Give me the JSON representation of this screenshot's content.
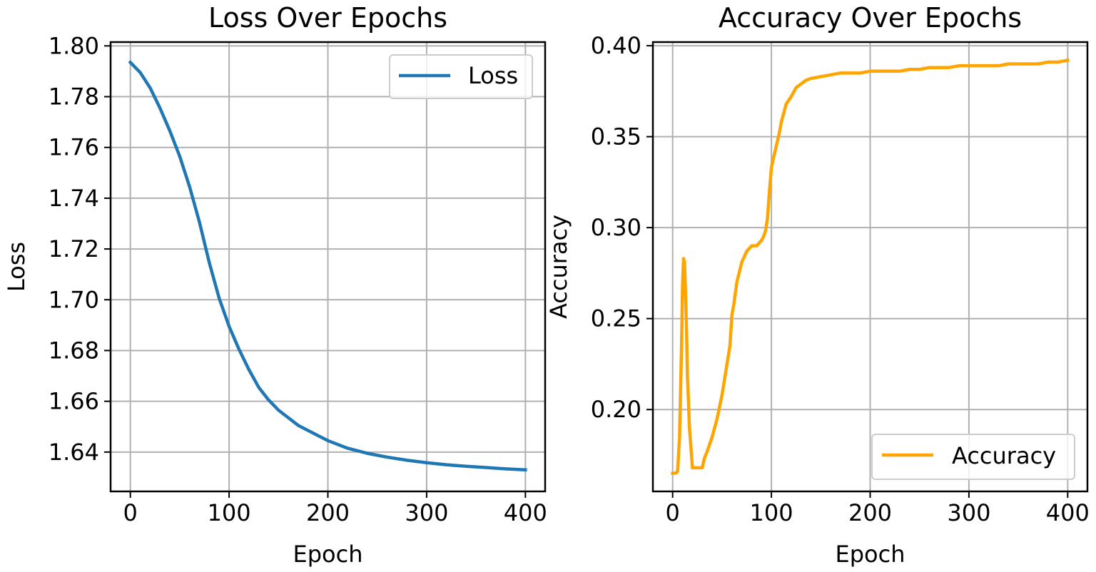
{
  "charts": [
    {
      "title": "Loss Over Epochs",
      "xlabel": "Epoch",
      "ylabel": "Loss",
      "xticks": [
        "0",
        "100",
        "200",
        "300",
        "400"
      ],
      "yticks": [
        "1.64",
        "1.66",
        "1.68",
        "1.70",
        "1.72",
        "1.74",
        "1.76",
        "1.78",
        "1.80"
      ],
      "legend": "Loss",
      "color": "#1f77b4"
    },
    {
      "title": "Accuracy Over Epochs",
      "xlabel": "Epoch",
      "ylabel": "Accuracy",
      "xticks": [
        "0",
        "100",
        "200",
        "300",
        "400"
      ],
      "yticks": [
        "0.20",
        "0.25",
        "0.30",
        "0.35",
        "0.40"
      ],
      "legend": "Accuracy",
      "color": "#ffa500"
    }
  ],
  "chart_data": [
    {
      "type": "line",
      "title": "Loss Over Epochs",
      "xlabel": "Epoch",
      "ylabel": "Loss",
      "xlim": [
        -20,
        420
      ],
      "ylim": [
        1.6245,
        1.8015
      ],
      "grid": true,
      "legend_position": "top-right",
      "series": [
        {
          "name": "Loss",
          "color": "#1f77b4",
          "x": [
            0,
            10,
            20,
            30,
            40,
            50,
            60,
            70,
            80,
            90,
            100,
            110,
            120,
            130,
            140,
            150,
            160,
            170,
            180,
            190,
            200,
            220,
            240,
            260,
            280,
            300,
            320,
            340,
            360,
            380,
            400
          ],
          "y": [
            1.7935,
            1.7895,
            1.7835,
            1.7755,
            1.7665,
            1.7565,
            1.7445,
            1.7305,
            1.7145,
            1.7005,
            1.6895,
            1.6805,
            1.6725,
            1.6655,
            1.6605,
            1.6565,
            1.6535,
            1.6505,
            1.6485,
            1.6465,
            1.6445,
            1.6415,
            1.6395,
            1.638,
            1.6368,
            1.6358,
            1.635,
            1.6344,
            1.6339,
            1.6334,
            1.633
          ]
        }
      ]
    },
    {
      "type": "line",
      "title": "Accuracy Over Epochs",
      "xlabel": "Epoch",
      "ylabel": "Accuracy",
      "xlim": [
        -20,
        420
      ],
      "ylim": [
        0.155,
        0.402
      ],
      "grid": true,
      "legend_position": "bottom-right",
      "series": [
        {
          "name": "Accuracy",
          "color": "#ffa500",
          "x": [
            0,
            3,
            5,
            7,
            9,
            10,
            11,
            12,
            13,
            14,
            15,
            16,
            17,
            18,
            19,
            20,
            21,
            22,
            23,
            24,
            25,
            26,
            28,
            30,
            32,
            35,
            40,
            45,
            50,
            55,
            58,
            60,
            62,
            65,
            70,
            75,
            80,
            85,
            90,
            92,
            94,
            96,
            98,
            100,
            102,
            105,
            108,
            110,
            112,
            115,
            120,
            125,
            130,
            135,
            140,
            150,
            160,
            170,
            180,
            190,
            200,
            210,
            220,
            230,
            240,
            250,
            260,
            270,
            280,
            290,
            300,
            310,
            320,
            330,
            340,
            350,
            360,
            370,
            380,
            390,
            400
          ],
          "y": [
            0.165,
            0.165,
            0.166,
            0.185,
            0.235,
            0.268,
            0.283,
            0.281,
            0.265,
            0.245,
            0.218,
            0.205,
            0.19,
            0.183,
            0.176,
            0.168,
            0.168,
            0.168,
            0.168,
            0.168,
            0.168,
            0.168,
            0.168,
            0.168,
            0.173,
            0.177,
            0.185,
            0.195,
            0.208,
            0.225,
            0.235,
            0.252,
            0.258,
            0.27,
            0.281,
            0.287,
            0.29,
            0.29,
            0.293,
            0.295,
            0.298,
            0.305,
            0.32,
            0.333,
            0.338,
            0.345,
            0.352,
            0.358,
            0.362,
            0.368,
            0.372,
            0.377,
            0.379,
            0.381,
            0.382,
            0.383,
            0.384,
            0.385,
            0.385,
            0.385,
            0.386,
            0.386,
            0.386,
            0.386,
            0.387,
            0.387,
            0.388,
            0.388,
            0.388,
            0.389,
            0.389,
            0.389,
            0.389,
            0.389,
            0.39,
            0.39,
            0.39,
            0.39,
            0.391,
            0.391,
            0.392
          ]
        }
      ]
    }
  ]
}
